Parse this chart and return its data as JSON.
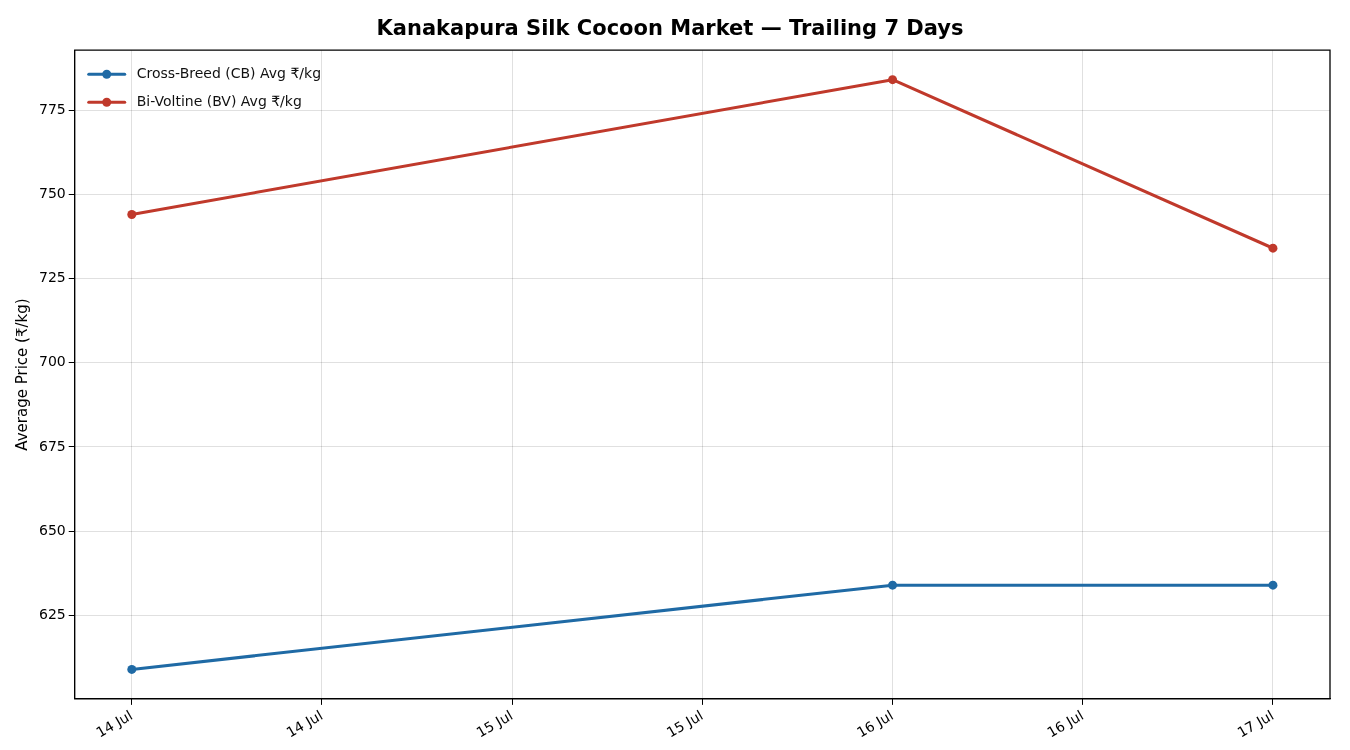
{
  "chart_data": {
    "type": "line",
    "title": "Kanakapura Silk Cocoon Market — Trailing 7 Days",
    "ylabel": "Average Price (₹/kg)",
    "x": [
      "--07-14",
      "--07-16",
      "--07-17"
    ],
    "series": [
      {
        "name": "Cross-Breed (CB) Avg ₹/kg",
        "color": "#1f6aa5",
        "values": [
          609,
          634,
          634
        ]
      },
      {
        "name": "Bi-Voltine (BV) Avg ₹/kg",
        "color": "#c0392b",
        "values": [
          744,
          784,
          734
        ]
      }
    ],
    "xlim": [
      "--07-13T20:24",
      "--07-17T03:36"
    ],
    "xticks": [
      {
        "value": "--07-14",
        "label": "14 Jul"
      },
      {
        "value": "--07-14T12:00",
        "label": "14 Jul"
      },
      {
        "value": "--07-15",
        "label": "15 Jul"
      },
      {
        "value": "--07-15T12:00",
        "label": "15 Jul"
      },
      {
        "value": "--07-16",
        "label": "16 Jul"
      },
      {
        "value": "--07-16T12:00",
        "label": "16 Jul"
      },
      {
        "value": "--07-17",
        "label": "17 Jul"
      }
    ],
    "ylim": [
      600.25,
      792.75
    ],
    "yticks": [
      625,
      650,
      675,
      700,
      725,
      750,
      775
    ],
    "grid": true,
    "legend": "top left",
    "marker": "circle",
    "line_style": "solid"
  }
}
